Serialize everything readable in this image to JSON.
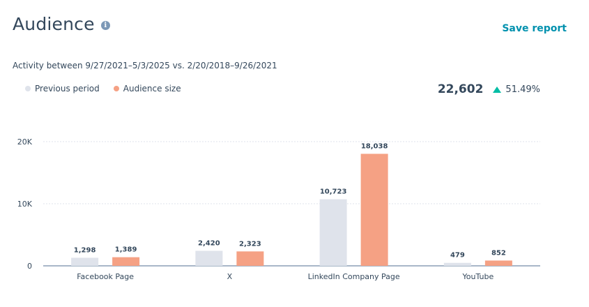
{
  "header": {
    "title": "Audience",
    "info_icon": "info-icon",
    "save_label": "Save report"
  },
  "subtitle": "Activity between 9/27/2021–5/3/2025 vs. 2/20/2018–9/26/2021",
  "summary": {
    "value": "22,602",
    "change": "51.49%",
    "trend_icon": "triangle-up-icon",
    "trend_color": "#00bda5"
  },
  "colors": {
    "previous": "#dfe3eb",
    "current": "#f5a184",
    "accent": "#0091ae"
  },
  "chart_data": {
    "type": "bar",
    "categories": [
      "Facebook Page",
      "X",
      "LinkedIn Company Page",
      "YouTube"
    ],
    "series": [
      {
        "name": "Previous period",
        "values": [
          1298,
          2420,
          10723,
          479
        ],
        "labels": [
          "1,298",
          "2,420",
          "10,723",
          "479"
        ]
      },
      {
        "name": "Audience size",
        "values": [
          1389,
          2323,
          18038,
          852
        ],
        "labels": [
          "1,389",
          "2,323",
          "18,038",
          "852"
        ]
      }
    ],
    "yticks": [
      {
        "value": 0,
        "label": "0"
      },
      {
        "value": 10000,
        "label": "10K"
      },
      {
        "value": 20000,
        "label": "20K"
      }
    ],
    "ylim": [
      0,
      20000
    ],
    "grid": true,
    "legend_position": "top-left"
  }
}
